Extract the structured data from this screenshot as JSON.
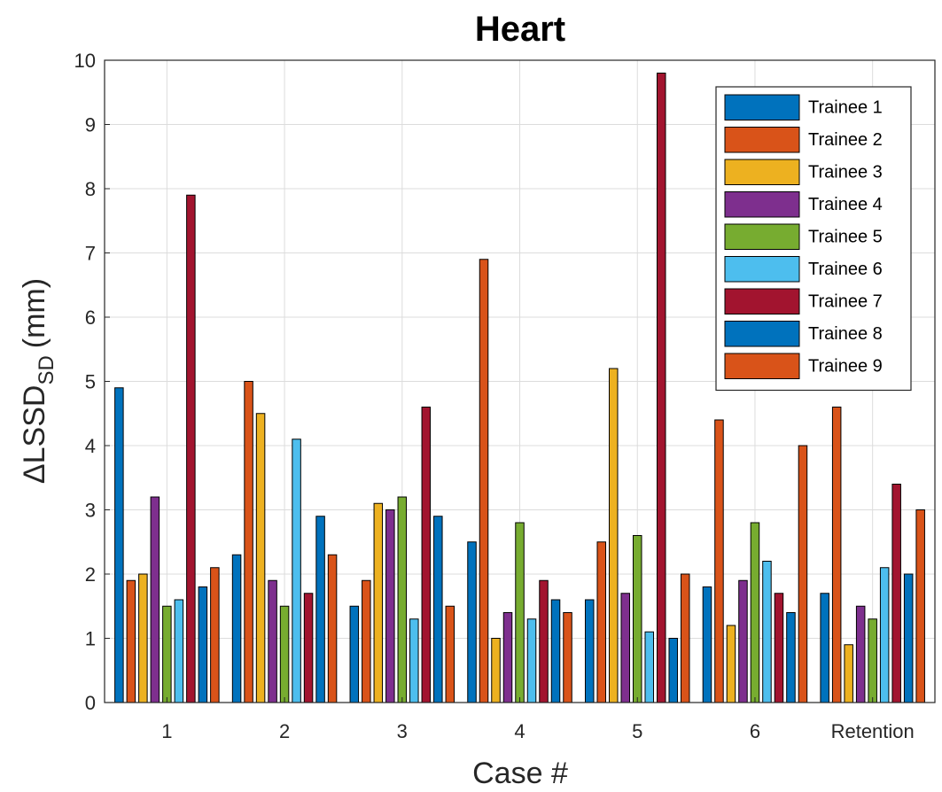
{
  "chart_data": {
    "type": "bar",
    "title": "Heart",
    "xlabel": "Case #",
    "ylabel_main": "ΔLSSD",
    "ylabel_sub": "SD",
    "ylabel_unit": "(mm)",
    "ylim": [
      0,
      10
    ],
    "yticks": [
      "0",
      "1",
      "2",
      "3",
      "4",
      "5",
      "6",
      "7",
      "8",
      "9",
      "10"
    ],
    "grid": true,
    "legend_position": "top-right",
    "categories": [
      "1",
      "2",
      "3",
      "4",
      "5",
      "6",
      "Retention"
    ],
    "series": [
      {
        "name": "Trainee 1",
        "color": "#0072BD",
        "values": [
          4.9,
          2.3,
          1.5,
          2.5,
          1.6,
          1.8,
          1.7
        ]
      },
      {
        "name": "Trainee 2",
        "color": "#D95319",
        "values": [
          1.9,
          5.0,
          1.9,
          6.9,
          2.5,
          4.4,
          4.6
        ]
      },
      {
        "name": "Trainee 3",
        "color": "#EDB120",
        "values": [
          2.0,
          4.5,
          3.1,
          1.0,
          5.2,
          1.2,
          0.9
        ]
      },
      {
        "name": "Trainee 4",
        "color": "#7E2F8E",
        "values": [
          3.2,
          1.9,
          3.0,
          1.4,
          1.7,
          1.9,
          1.5
        ]
      },
      {
        "name": "Trainee 5",
        "color": "#77AC30",
        "values": [
          1.5,
          1.5,
          3.2,
          2.8,
          2.6,
          2.8,
          1.3
        ]
      },
      {
        "name": "Trainee 6",
        "color": "#4DBEEE",
        "values": [
          1.6,
          4.1,
          1.3,
          1.3,
          1.1,
          2.2,
          2.1
        ]
      },
      {
        "name": "Trainee 7",
        "color": "#A2142F",
        "values": [
          7.9,
          1.7,
          4.6,
          1.9,
          9.8,
          1.7,
          3.4
        ]
      },
      {
        "name": "Trainee 8",
        "color": "#0072BD",
        "values": [
          1.8,
          2.9,
          2.9,
          1.6,
          1.0,
          1.4,
          2.0
        ]
      },
      {
        "name": "Trainee 9",
        "color": "#D95319",
        "values": [
          2.1,
          2.3,
          1.5,
          1.4,
          2.0,
          4.0,
          3.0
        ]
      }
    ]
  }
}
